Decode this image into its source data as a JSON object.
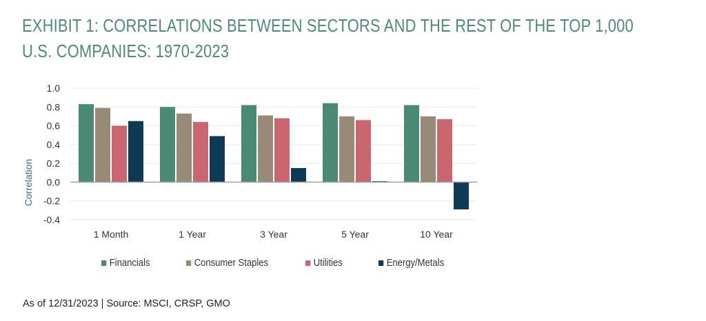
{
  "title_lines": [
    "EXHIBIT 1: CORRELATIONS BETWEEN SECTORS AND THE REST OF THE TOP 1,000",
    "U.S. COMPANIES: 1970-2023"
  ],
  "footer": "As of 12/31/2023 | Source: MSCI, CRSP, GMO",
  "chart_data": {
    "type": "bar",
    "title": "EXHIBIT 1: CORRELATIONS BETWEEN SECTORS AND THE REST OF THE TOP 1,000 U.S. COMPANIES: 1970-2023",
    "xlabel": "",
    "ylabel": "Correlation",
    "ylim": [
      -0.4,
      1.0
    ],
    "yticks": [
      "1.0",
      "0.8",
      "0.6",
      "0.4",
      "0.2",
      "0.0",
      "-0.2",
      "-0.4"
    ],
    "ytick_values": [
      1.0,
      0.8,
      0.6,
      0.4,
      0.2,
      0.0,
      -0.2,
      -0.4
    ],
    "grid": true,
    "legend_position": "bottom",
    "categories": [
      "1 Month",
      "1 Year",
      "3 Year",
      "5 Year",
      "10 Year"
    ],
    "series": [
      {
        "name": "Financials",
        "color": "#4a8a74",
        "values": [
          0.83,
          0.8,
          0.82,
          0.84,
          0.82
        ]
      },
      {
        "name": "Consumer Staples",
        "color": "#998a78",
        "values": [
          0.79,
          0.73,
          0.71,
          0.7,
          0.7
        ]
      },
      {
        "name": "Utilities",
        "color": "#c9666f",
        "values": [
          0.6,
          0.64,
          0.68,
          0.66,
          0.67
        ]
      },
      {
        "name": "Energy/Metals",
        "color": "#0e3a56",
        "values": [
          0.65,
          0.49,
          0.15,
          0.01,
          -0.29
        ]
      }
    ]
  }
}
